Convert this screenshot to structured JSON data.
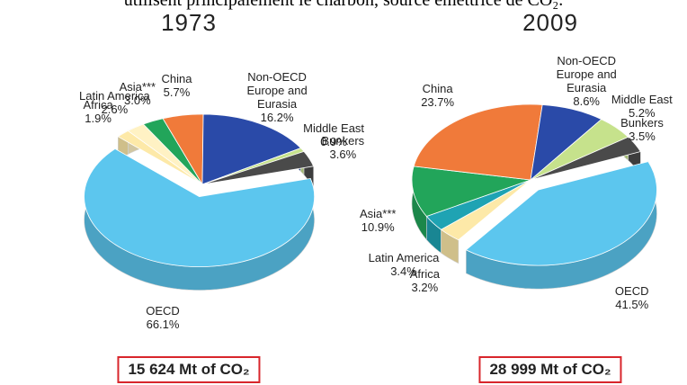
{
  "caption": "utilisent principalement le charbon, source émettrice de CO₂.",
  "chart_data": [
    {
      "type": "pie",
      "title": "1973",
      "annotation": "15 624 Mt of CO₂",
      "categories": [
        "OECD",
        "Africa",
        "Latin America",
        "Asia***",
        "China",
        "Non-OECD Europe and Eurasia",
        "Middle East",
        "Bunkers"
      ],
      "values": [
        66.1,
        1.9,
        2.6,
        3.0,
        5.7,
        16.2,
        0.9,
        3.6
      ],
      "value_labels": [
        "66.1%",
        "1.9%",
        "2.6%",
        "3.0%",
        "5.7%",
        "16.2%",
        "0.9%",
        "3.6%"
      ],
      "colors": [
        "#5cc6ee",
        "#fde9a8",
        "#fff2c4",
        "#22a55a",
        "#f07a3a",
        "#2a4aa8",
        "#c6e28c",
        "#4a4a4a"
      ]
    },
    {
      "type": "pie",
      "title": "2009",
      "annotation": "28 999 Mt of CO₂",
      "categories": [
        "OECD",
        "Africa",
        "Latin America",
        "Asia***",
        "China",
        "Non-OECD Europe and Eurasia",
        "Middle East",
        "Bunkers"
      ],
      "values": [
        41.5,
        3.2,
        3.4,
        10.9,
        23.7,
        8.6,
        5.2,
        3.5
      ],
      "value_labels": [
        "41.5%",
        "3.2%",
        "3.4%",
        "10.9%",
        "23.7%",
        "8.6%",
        "5.2%",
        "3.5%"
      ],
      "colors": [
        "#5cc6ee",
        "#fde9a8",
        "#1fa3b3",
        "#22a55a",
        "#f07a3a",
        "#2a4aa8",
        "#c6e28c",
        "#4a4a4a"
      ]
    }
  ]
}
